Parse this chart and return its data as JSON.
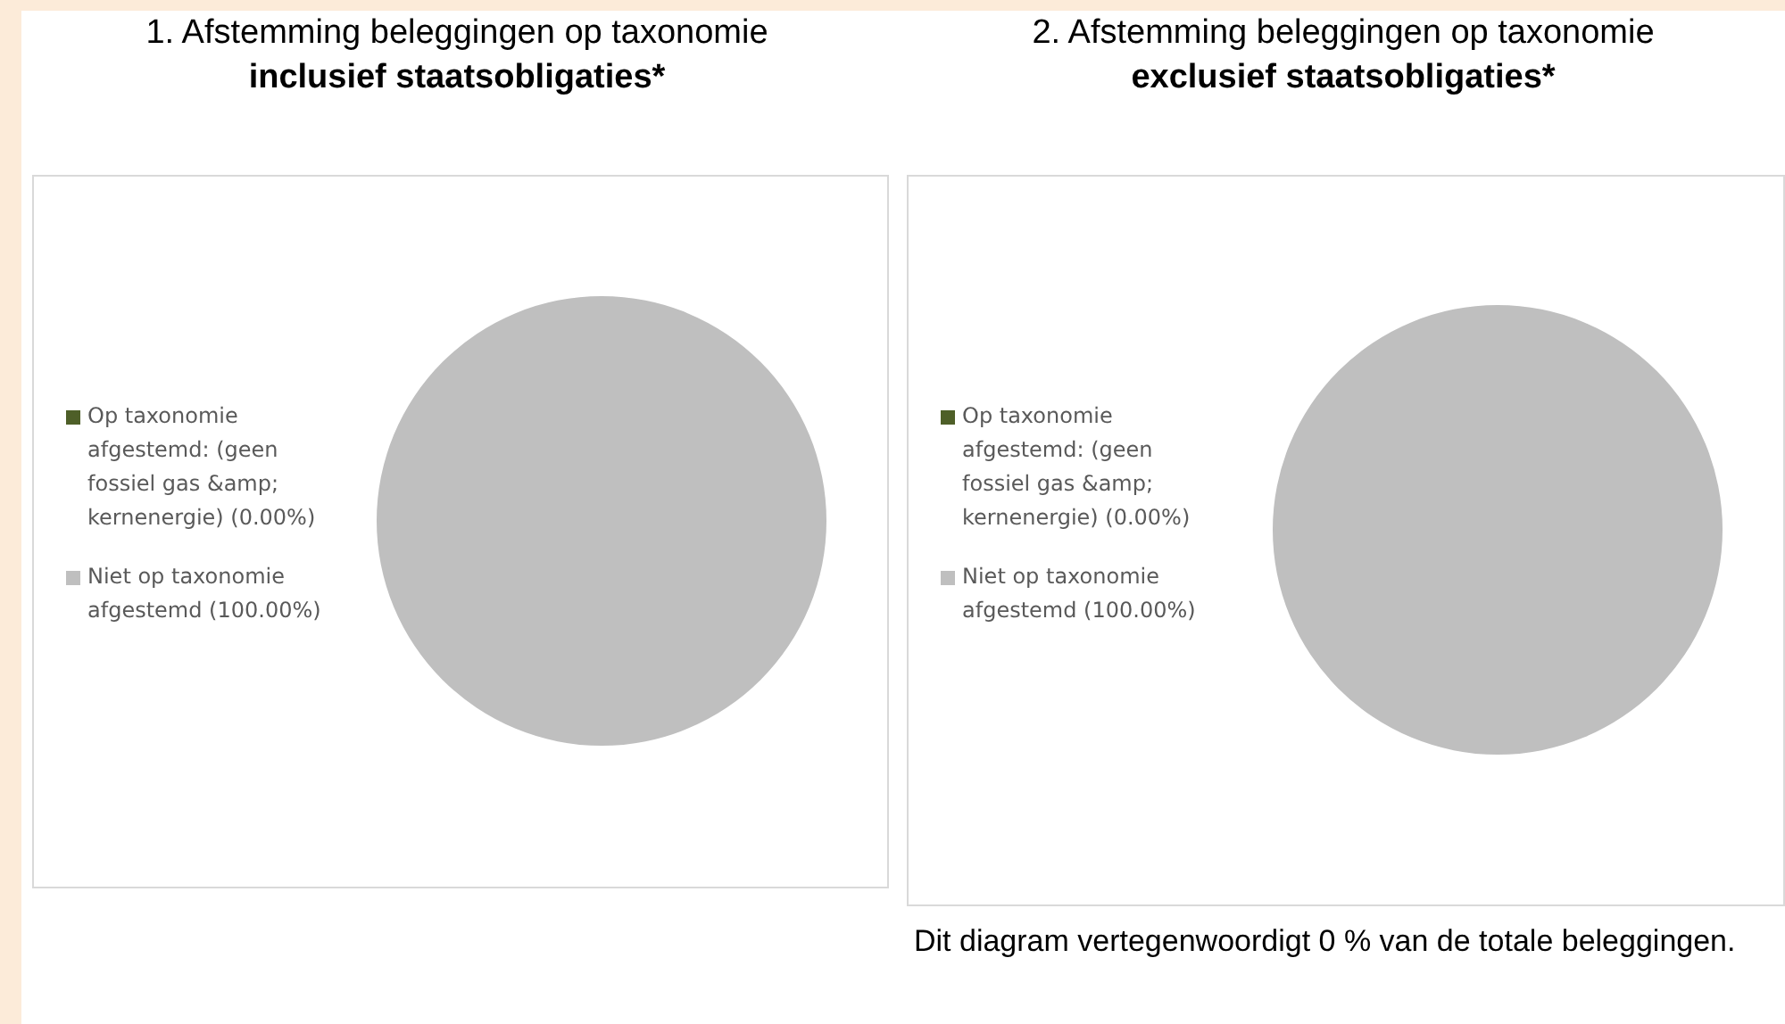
{
  "chart_data": [
    {
      "type": "pie",
      "title": "1. Afstemming beleggingen op taxonomie",
      "subtitle": "inclusief staatsobligaties*",
      "categories": [
        "Op taxonomie afgestemd: (geen fossiel gas &amp; kernenergie) (0.00%)",
        "Niet op taxonomie afgestemd (100.00%)"
      ],
      "values": [
        0,
        100
      ],
      "colors": [
        "#4e5f28",
        "#bfbfbf"
      ],
      "legend": "left"
    },
    {
      "type": "pie",
      "title": "2. Afstemming beleggingen op taxonomie",
      "subtitle": "exclusief staatsobligaties*",
      "categories": [
        "Op taxonomie afgestemd: (geen fossiel gas &amp; kernenergie) (0.00%)",
        "Niet op taxonomie afgestemd (100.00%)"
      ],
      "values": [
        0,
        100
      ],
      "colors": [
        "#4e5f28",
        "#bfbfbf"
      ],
      "legend": "left",
      "annotations": [
        "Dit diagram vertegenwoordigt 0 % van de totale beleggingen."
      ]
    }
  ]
}
